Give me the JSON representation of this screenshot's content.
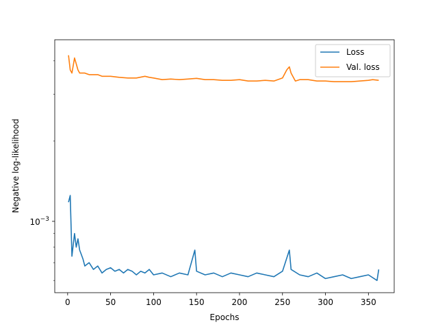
{
  "chart_data": {
    "type": "line",
    "title": "",
    "xlabel": "Epochs",
    "ylabel": "Negative log-likelihood",
    "yscale": "log",
    "xlim": [
      -15,
      380
    ],
    "ylim": [
      0.00054,
      0.0048
    ],
    "xticks": [
      0,
      50,
      100,
      150,
      200,
      250,
      300,
      350
    ],
    "yticks": [
      {
        "value": 0.001,
        "label": "10",
        "exp": "−3"
      }
    ],
    "legend": {
      "position": "top-right"
    },
    "grid": false,
    "series": [
      {
        "name": "Loss",
        "color": "#1f77b4",
        "x": [
          1,
          3,
          5,
          8,
          10,
          12,
          14,
          16,
          18,
          20,
          25,
          30,
          35,
          40,
          45,
          50,
          55,
          60,
          65,
          70,
          75,
          80,
          85,
          90,
          95,
          100,
          110,
          120,
          130,
          140,
          148,
          150,
          160,
          170,
          180,
          190,
          200,
          210,
          220,
          230,
          240,
          250,
          258,
          260,
          270,
          280,
          290,
          300,
          310,
          320,
          330,
          340,
          350,
          360,
          362
        ],
        "y": [
          0.00118,
          0.00125,
          0.00074,
          0.0009,
          0.0008,
          0.00086,
          0.00078,
          0.00075,
          0.00072,
          0.00068,
          0.0007,
          0.00066,
          0.00068,
          0.00064,
          0.00066,
          0.00067,
          0.00065,
          0.00066,
          0.00064,
          0.00066,
          0.00065,
          0.00063,
          0.00065,
          0.00064,
          0.00066,
          0.00063,
          0.00064,
          0.00062,
          0.00064,
          0.00063,
          0.00078,
          0.00065,
          0.00063,
          0.00064,
          0.00062,
          0.00064,
          0.00063,
          0.00062,
          0.00064,
          0.00063,
          0.00062,
          0.00065,
          0.00078,
          0.00066,
          0.00063,
          0.00062,
          0.00064,
          0.00061,
          0.00062,
          0.00063,
          0.00061,
          0.00062,
          0.00063,
          0.0006,
          0.00066
        ]
      },
      {
        "name": "Val. loss",
        "color": "#ff7f0e",
        "x": [
          1,
          3,
          5,
          8,
          10,
          12,
          14,
          16,
          18,
          20,
          25,
          30,
          35,
          40,
          45,
          50,
          60,
          70,
          80,
          90,
          95,
          100,
          110,
          120,
          130,
          140,
          150,
          160,
          170,
          180,
          190,
          200,
          210,
          220,
          230,
          240,
          250,
          255,
          258,
          260,
          265,
          270,
          280,
          290,
          300,
          310,
          320,
          330,
          340,
          350,
          355,
          362
        ],
        "y": [
          0.0042,
          0.0037,
          0.0036,
          0.0041,
          0.0039,
          0.0037,
          0.0036,
          0.0036,
          0.0036,
          0.0036,
          0.00355,
          0.00355,
          0.00355,
          0.0035,
          0.0035,
          0.0035,
          0.00347,
          0.00345,
          0.00345,
          0.0035,
          0.00347,
          0.00345,
          0.0034,
          0.00342,
          0.0034,
          0.00342,
          0.00344,
          0.0034,
          0.0034,
          0.00338,
          0.00338,
          0.0034,
          0.00336,
          0.00336,
          0.00338,
          0.00336,
          0.00345,
          0.0037,
          0.0038,
          0.0036,
          0.00336,
          0.0034,
          0.0034,
          0.00336,
          0.00336,
          0.00334,
          0.00334,
          0.00334,
          0.00336,
          0.00338,
          0.0034,
          0.00338
        ]
      }
    ]
  }
}
